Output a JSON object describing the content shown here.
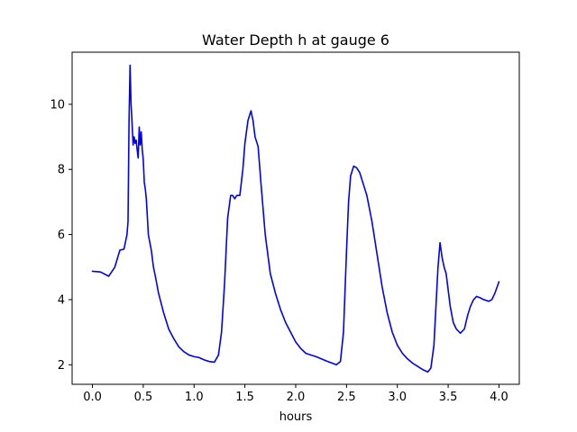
{
  "chart_data": {
    "type": "line",
    "title": "Water Depth h at gauge 6",
    "xlabel": "hours",
    "ylabel": "",
    "xlim": [
      -0.2,
      4.2
    ],
    "ylim": [
      1.4,
      11.6
    ],
    "xticks": [
      0.0,
      0.5,
      1.0,
      1.5,
      2.0,
      2.5,
      3.0,
      3.5,
      4.0
    ],
    "xtick_labels": [
      "0.0",
      "0.5",
      "1.0",
      "1.5",
      "2.0",
      "2.5",
      "3.0",
      "3.5",
      "4.0"
    ],
    "yticks": [
      2,
      4,
      6,
      8,
      10
    ],
    "ytick_labels": [
      "2",
      "4",
      "6",
      "8",
      "10"
    ],
    "grid": false,
    "series": [
      {
        "color": "#0000ff",
        "x": [
          0.0,
          0.08,
          0.16,
          0.22,
          0.27,
          0.31,
          0.34,
          0.35,
          0.36,
          0.37,
          0.38,
          0.39,
          0.4,
          0.41,
          0.42,
          0.43,
          0.44,
          0.45,
          0.46,
          0.47,
          0.48,
          0.49,
          0.5,
          0.51,
          0.52,
          0.53,
          0.55,
          0.58,
          0.6,
          0.62,
          0.65,
          0.7,
          0.75,
          0.8,
          0.85,
          0.9,
          0.95,
          1.0,
          1.05,
          1.1,
          1.15,
          1.2,
          1.24,
          1.27,
          1.3,
          1.33,
          1.36,
          1.38,
          1.4,
          1.42,
          1.45,
          1.48,
          1.5,
          1.53,
          1.56,
          1.58,
          1.6,
          1.63,
          1.66,
          1.7,
          1.75,
          1.8,
          1.85,
          1.9,
          1.95,
          2.0,
          2.05,
          2.1,
          2.2,
          2.3,
          2.4,
          2.44,
          2.47,
          2.5,
          2.52,
          2.54,
          2.57,
          2.6,
          2.63,
          2.67,
          2.7,
          2.75,
          2.8,
          2.85,
          2.9,
          2.95,
          3.0,
          3.05,
          3.1,
          3.15,
          3.2,
          3.25,
          3.3,
          3.33,
          3.36,
          3.38,
          3.4,
          3.42,
          3.44,
          3.46,
          3.48,
          3.5,
          3.52,
          3.55,
          3.58,
          3.62,
          3.66,
          3.69,
          3.72,
          3.75,
          3.78,
          3.82,
          3.85,
          3.9,
          3.93,
          3.96,
          4.0
        ],
        "y": [
          4.87,
          4.85,
          4.72,
          5.0,
          5.52,
          5.55,
          6.0,
          6.4,
          9.5,
          11.2,
          10.0,
          9.4,
          8.75,
          9.0,
          8.8,
          8.9,
          8.6,
          8.35,
          9.3,
          8.75,
          9.15,
          8.6,
          8.3,
          7.6,
          7.4,
          7.1,
          6.0,
          5.5,
          5.0,
          4.7,
          4.2,
          3.6,
          3.1,
          2.8,
          2.55,
          2.4,
          2.3,
          2.25,
          2.22,
          2.15,
          2.1,
          2.08,
          2.3,
          3.0,
          4.5,
          6.5,
          7.2,
          7.2,
          7.1,
          7.2,
          7.2,
          8.0,
          8.8,
          9.5,
          9.8,
          9.5,
          9.0,
          8.7,
          7.5,
          6.0,
          4.8,
          4.2,
          3.7,
          3.3,
          3.0,
          2.7,
          2.5,
          2.35,
          2.25,
          2.12,
          2.0,
          2.1,
          3.0,
          5.5,
          7.0,
          7.8,
          8.1,
          8.05,
          7.9,
          7.5,
          7.2,
          6.4,
          5.4,
          4.4,
          3.6,
          3.0,
          2.6,
          2.35,
          2.18,
          2.05,
          1.95,
          1.85,
          1.78,
          1.9,
          2.6,
          3.8,
          5.0,
          5.75,
          5.3,
          5.0,
          4.8,
          4.3,
          3.8,
          3.3,
          3.1,
          2.97,
          3.1,
          3.5,
          3.8,
          4.0,
          4.1,
          4.05,
          4.0,
          3.95,
          4.0,
          4.2,
          4.55
        ]
      }
    ]
  }
}
